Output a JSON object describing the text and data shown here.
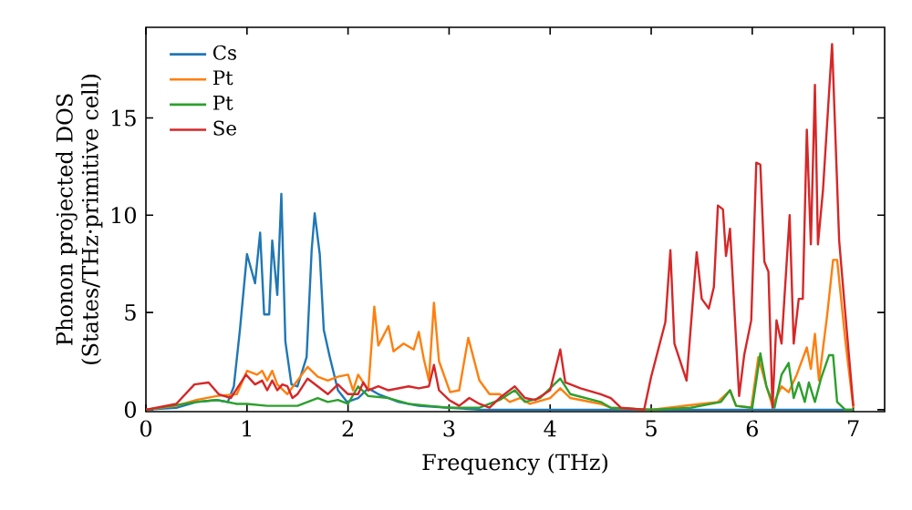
{
  "chart_data": {
    "type": "line",
    "xlabel": "Frequency (THz)",
    "ylabel": "Phonon projected DOS (States/THz·primitive cell)",
    "xlim": [
      0,
      7.31
    ],
    "ylim": [
      -0.1,
      19.66
    ],
    "xticks": [
      0,
      1,
      2,
      3,
      4,
      5,
      6,
      7
    ],
    "yticks": [
      0,
      5,
      10,
      15
    ],
    "grid": false,
    "legend": "top left",
    "marker": "none",
    "line_style": "solid",
    "series": [
      {
        "name": "Cs",
        "color": "#1f77b4",
        "x": [
          0,
          0.3,
          0.5,
          0.7,
          0.81,
          0.87,
          0.93,
          1.0,
          1.08,
          1.13,
          1.17,
          1.22,
          1.25,
          1.3,
          1.34,
          1.38,
          1.44,
          1.5,
          1.59,
          1.64,
          1.67,
          1.72,
          1.76,
          1.82,
          1.9,
          1.99,
          2.1,
          2.2,
          2.3,
          2.5,
          2.7,
          3.0,
          3.3,
          4.0,
          5.0,
          6.0,
          7.0
        ],
        "values": [
          0,
          0.1,
          0.4,
          0.5,
          0.4,
          1.2,
          4.1,
          8.0,
          6.5,
          9.1,
          4.9,
          4.9,
          8.7,
          5.9,
          11.1,
          3.5,
          1.3,
          1.2,
          2.7,
          8.2,
          10.1,
          8.0,
          4.1,
          2.7,
          1.0,
          0.4,
          0.6,
          1.1,
          0.8,
          0.4,
          0.2,
          0.1,
          0,
          0,
          0,
          0,
          0
        ]
      },
      {
        "name": "Pt",
        "color": "#ff7f0e",
        "x": [
          0,
          0.3,
          0.5,
          0.7,
          0.9,
          1.0,
          1.1,
          1.15,
          1.2,
          1.25,
          1.3,
          1.4,
          1.5,
          1.6,
          1.7,
          1.8,
          1.9,
          2.0,
          2.05,
          2.1,
          2.2,
          2.26,
          2.3,
          2.4,
          2.45,
          2.55,
          2.65,
          2.7,
          2.75,
          2.8,
          2.85,
          2.9,
          3.01,
          3.1,
          3.19,
          3.3,
          3.4,
          3.5,
          3.6,
          3.7,
          3.8,
          4.0,
          4.1,
          4.2,
          4.5,
          4.6,
          5.0,
          5.66,
          5.78,
          5.84,
          5.99,
          6.06,
          6.14,
          6.2,
          6.29,
          6.36,
          6.44,
          6.54,
          6.58,
          6.62,
          6.66,
          6.74,
          6.8,
          6.84,
          6.92,
          7.0
        ],
        "values": [
          0,
          0.2,
          0.5,
          0.7,
          0.8,
          2.0,
          1.8,
          2.0,
          1.5,
          2.0,
          1.3,
          0.8,
          1.5,
          2.2,
          1.7,
          1.5,
          1.7,
          1.8,
          1.0,
          1.8,
          1.0,
          5.3,
          3.3,
          4.3,
          3.0,
          3.4,
          3.1,
          4.0,
          2.6,
          1.5,
          5.5,
          2.5,
          0.9,
          1.0,
          3.7,
          1.5,
          0.8,
          0.8,
          0.4,
          0.6,
          0.3,
          0.6,
          1.1,
          0.6,
          0.3,
          0.1,
          0,
          0.4,
          1.0,
          0.2,
          0.1,
          2.7,
          1.2,
          0.2,
          1.2,
          0.9,
          1.8,
          3.2,
          2.1,
          3.9,
          1.5,
          4.8,
          7.7,
          7.7,
          3.6,
          0.1
        ]
      },
      {
        "name": "Pt",
        "color": "#2ca02c",
        "x": [
          0,
          0.5,
          0.7,
          0.9,
          1.0,
          1.2,
          1.5,
          1.7,
          1.8,
          1.9,
          2.0,
          2.1,
          2.2,
          2.4,
          2.6,
          2.8,
          3.0,
          3.3,
          3.5,
          3.65,
          3.75,
          3.9,
          4.1,
          4.2,
          4.5,
          4.6,
          5.0,
          5.39,
          5.69,
          5.78,
          5.84,
          6.0,
          6.08,
          6.14,
          6.22,
          6.29,
          6.36,
          6.41,
          6.46,
          6.52,
          6.56,
          6.62,
          6.68,
          6.76,
          6.8,
          6.84,
          6.92,
          7.0
        ],
        "values": [
          0,
          0.4,
          0.5,
          0.3,
          0.3,
          0.2,
          0.2,
          0.6,
          0.4,
          0.5,
          0.3,
          1.2,
          0.7,
          0.6,
          0.3,
          0.2,
          0.1,
          0.1,
          0.5,
          1.0,
          0.4,
          0.6,
          1.6,
          0.8,
          0.4,
          0.1,
          0,
          0.1,
          0.4,
          1.0,
          0.2,
          0.1,
          2.9,
          1.2,
          0.1,
          1.8,
          2.4,
          0.6,
          1.4,
          0.4,
          1.4,
          0.4,
          1.6,
          2.8,
          2.8,
          0.4,
          0,
          0
        ]
      },
      {
        "name": "Se",
        "color": "#d62728",
        "x": [
          0,
          0.3,
          0.48,
          0.62,
          0.72,
          0.84,
          0.99,
          1.08,
          1.15,
          1.2,
          1.25,
          1.3,
          1.35,
          1.4,
          1.45,
          1.5,
          1.6,
          1.7,
          1.8,
          1.9,
          2.0,
          2.1,
          2.15,
          2.2,
          2.3,
          2.4,
          2.6,
          2.7,
          2.8,
          2.85,
          2.9,
          3.0,
          3.1,
          3.2,
          3.3,
          3.4,
          3.5,
          3.65,
          3.75,
          3.85,
          4.0,
          4.1,
          4.15,
          4.3,
          4.5,
          4.6,
          4.7,
          4.93,
          5.0,
          5.14,
          5.19,
          5.23,
          5.35,
          5.45,
          5.5,
          5.57,
          5.62,
          5.66,
          5.71,
          5.74,
          5.78,
          5.87,
          5.92,
          5.99,
          6.04,
          6.08,
          6.12,
          6.16,
          6.2,
          6.24,
          6.29,
          6.37,
          6.41,
          6.46,
          6.5,
          6.54,
          6.58,
          6.62,
          6.65,
          6.7,
          6.79,
          6.86,
          6.92,
          7.0
        ],
        "values": [
          0,
          0.3,
          1.3,
          1.4,
          0.8,
          0.6,
          1.8,
          1.3,
          1.5,
          1.0,
          1.5,
          1.0,
          1.3,
          1.2,
          0.6,
          0.8,
          1.6,
          1.2,
          0.8,
          1.3,
          0.8,
          0.8,
          1.4,
          1.0,
          1.2,
          1.0,
          1.2,
          1.1,
          1.2,
          2.3,
          1.0,
          0.5,
          0.2,
          0.6,
          0.3,
          0.1,
          0.6,
          1.2,
          0.6,
          0.5,
          1.0,
          3.1,
          1.4,
          1.1,
          0.8,
          0.6,
          0.1,
          0,
          1.7,
          4.5,
          8.2,
          3.4,
          1.5,
          8.1,
          5.7,
          5.2,
          6.3,
          10.5,
          10.3,
          7.9,
          9.3,
          0.7,
          2.8,
          4.6,
          12.7,
          12.6,
          7.6,
          7.1,
          0.1,
          4.6,
          3.4,
          10.0,
          3.4,
          5.7,
          5.7,
          14.4,
          8.5,
          16.7,
          8.5,
          11.3,
          18.8,
          8.7,
          5.0,
          0.2
        ]
      }
    ]
  }
}
